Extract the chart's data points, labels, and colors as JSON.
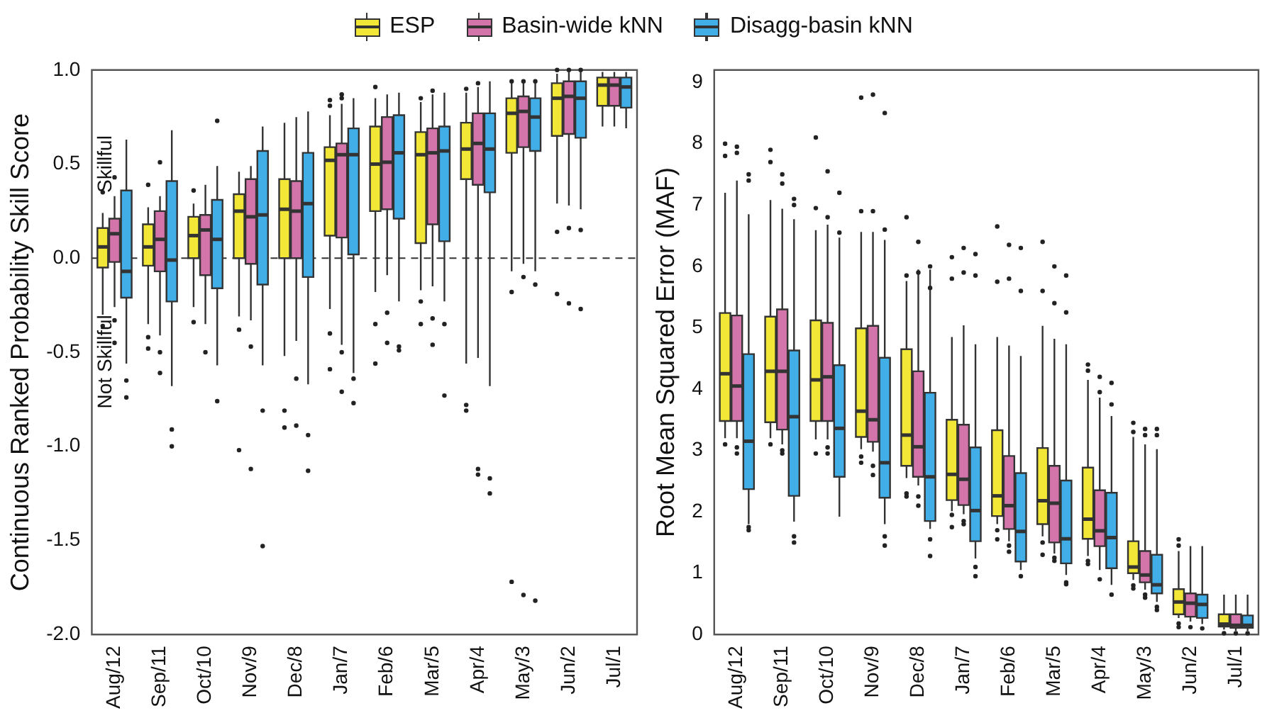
{
  "chart_data": [
    {
      "type": "box",
      "ylabel": "Continuous Ranked Probability Skill Score",
      "categories": [
        "Aug/12",
        "Sep/11",
        "Oct/10",
        "Nov/9",
        "Dec/8",
        "Jan/7",
        "Feb/6",
        "Mar/5",
        "Apr/4",
        "May/3",
        "Jun/2",
        "Jul/1"
      ],
      "ylim": [
        -2.0,
        1.0
      ],
      "yticks": [
        {
          "value": -2,
          "label": "-2.0"
        },
        {
          "value": -1.5,
          "label": "-1.5"
        },
        {
          "value": -1,
          "label": "-1.0"
        },
        {
          "value": -0.5,
          "label": "-0.5"
        },
        {
          "value": 0,
          "label": "0.0"
        },
        {
          "value": 0.5,
          "label": "0.5"
        },
        {
          "value": 1,
          "label": "1.0"
        }
      ],
      "grid": false,
      "legend": "top",
      "ref_lines": [
        {
          "axis": "y",
          "value": 0,
          "line_style": "dashed",
          "color": "#333333"
        }
      ],
      "annotations": [
        "Skillful",
        "Not Skillful"
      ],
      "series": [
        {
          "name": "ESP",
          "color": "#f2e636",
          "boxes": [
            {
              "low": -0.3,
              "q1": -0.05,
              "median": 0.06,
              "q3": 0.16,
              "high": 0.24,
              "outliers": [
                0.35,
                -0.36
              ]
            },
            {
              "low": -0.35,
              "q1": -0.04,
              "median": 0.06,
              "q3": 0.18,
              "high": 0.27,
              "outliers": [
                0.39,
                -0.42,
                -0.48
              ]
            },
            {
              "low": -0.26,
              "q1": 0.0,
              "median": 0.12,
              "q3": 0.22,
              "high": 0.29,
              "outliers": [
                0.36,
                -0.34
              ]
            },
            {
              "low": -0.31,
              "q1": 0.0,
              "median": 0.25,
              "q3": 0.34,
              "high": 0.46,
              "outliers": [
                -0.38,
                -1.02
              ]
            },
            {
              "low": -0.52,
              "q1": 0.0,
              "median": 0.26,
              "q3": 0.42,
              "high": 0.72,
              "outliers": [
                -0.81,
                -0.9
              ]
            },
            {
              "low": -0.27,
              "q1": 0.12,
              "median": 0.52,
              "q3": 0.59,
              "high": 0.76,
              "outliers": [
                0.81,
                0.84,
                -0.4,
                -0.59
              ]
            },
            {
              "low": -0.18,
              "q1": 0.25,
              "median": 0.5,
              "q3": 0.7,
              "high": 0.85,
              "outliers": [
                0.91,
                -0.35,
                -0.56
              ]
            },
            {
              "low": -0.17,
              "q1": 0.08,
              "median": 0.55,
              "q3": 0.67,
              "high": 0.83,
              "outliers": [
                0.85,
                -0.23,
                -0.35
              ]
            },
            {
              "low": -0.56,
              "q1": 0.42,
              "median": 0.58,
              "q3": 0.72,
              "high": 0.88,
              "outliers": [
                0.9,
                -0.78,
                -0.81
              ]
            },
            {
              "low": -0.07,
              "q1": 0.56,
              "median": 0.77,
              "q3": 0.85,
              "high": 0.93,
              "outliers": [
                0.94,
                -0.18,
                -1.72
              ]
            },
            {
              "low": 0.29,
              "q1": 0.65,
              "median": 0.85,
              "q3": 0.93,
              "high": 0.98,
              "outliers": [
                1.0,
                0.14,
                -0.19
              ]
            },
            {
              "low": 0.7,
              "q1": 0.81,
              "median": 0.92,
              "q3": 0.96,
              "high": 0.99
            }
          ]
        },
        {
          "name": "Basin-wide kNN",
          "color": "#d374ab",
          "boxes": [
            {
              "low": -0.26,
              "q1": -0.02,
              "median": 0.13,
              "q3": 0.21,
              "high": 0.33,
              "outliers": [
                0.43,
                -0.33,
                -0.45
              ]
            },
            {
              "low": -0.41,
              "q1": -0.07,
              "median": 0.1,
              "q3": 0.25,
              "high": 0.33,
              "outliers": [
                0.51,
                -0.5,
                -0.61
              ]
            },
            {
              "low": -0.35,
              "q1": -0.09,
              "median": 0.15,
              "q3": 0.23,
              "high": 0.39,
              "outliers": [
                -0.5
              ]
            },
            {
              "low": -0.33,
              "q1": -0.03,
              "median": 0.22,
              "q3": 0.42,
              "high": 0.49,
              "outliers": [
                -0.47,
                -1.12
              ]
            },
            {
              "low": -0.44,
              "q1": 0.0,
              "median": 0.25,
              "q3": 0.41,
              "high": 0.75,
              "outliers": [
                -0.64,
                -0.89
              ]
            },
            {
              "low": -0.46,
              "q1": 0.11,
              "median": 0.55,
              "q3": 0.61,
              "high": 0.82,
              "outliers": [
                0.85,
                0.87,
                -0.5,
                -0.71
              ]
            },
            {
              "low": -0.09,
              "q1": 0.26,
              "median": 0.51,
              "q3": 0.75,
              "high": 0.87,
              "outliers": [
                -0.29,
                -0.45
              ]
            },
            {
              "low": -0.15,
              "q1": 0.18,
              "median": 0.56,
              "q3": 0.69,
              "high": 0.87,
              "outliers": [
                0.89,
                -0.32,
                -0.46
              ]
            },
            {
              "low": -0.53,
              "q1": 0.39,
              "median": 0.61,
              "q3": 0.77,
              "high": 0.91,
              "outliers": [
                0.93,
                -1.12,
                -1.15
              ]
            },
            {
              "low": -0.03,
              "q1": 0.59,
              "median": 0.78,
              "q3": 0.86,
              "high": 0.93,
              "outliers": [
                0.94,
                -0.1,
                -1.79
              ]
            },
            {
              "low": 0.28,
              "q1": 0.66,
              "median": 0.86,
              "q3": 0.94,
              "high": 0.99,
              "outliers": [
                1.0,
                0.16,
                -0.24
              ]
            },
            {
              "low": 0.7,
              "q1": 0.81,
              "median": 0.92,
              "q3": 0.96,
              "high": 0.99
            }
          ]
        },
        {
          "name": "Disagg-basin kNN",
          "color": "#42aee8",
          "boxes": [
            {
              "low": -0.56,
              "q1": -0.21,
              "median": -0.07,
              "q3": 0.36,
              "high": 0.63,
              "outliers": [
                -0.65,
                -0.74
              ]
            },
            {
              "low": -0.68,
              "q1": -0.23,
              "median": -0.01,
              "q3": 0.41,
              "high": 0.68,
              "outliers": [
                -0.91,
                -1.0
              ]
            },
            {
              "low": -0.57,
              "q1": -0.16,
              "median": 0.1,
              "q3": 0.31,
              "high": 0.49,
              "outliers": [
                0.73,
                -0.76
              ]
            },
            {
              "low": -0.57,
              "q1": -0.14,
              "median": 0.23,
              "q3": 0.57,
              "high": 0.7,
              "outliers": [
                -0.81,
                -1.53
              ]
            },
            {
              "low": -0.67,
              "q1": -0.1,
              "median": 0.29,
              "q3": 0.56,
              "high": 0.78,
              "outliers": [
                -0.94,
                -1.13
              ]
            },
            {
              "low": -0.61,
              "q1": 0.02,
              "median": 0.55,
              "q3": 0.69,
              "high": 0.85,
              "outliers": [
                -0.64,
                -0.77
              ]
            },
            {
              "low": -0.23,
              "q1": 0.21,
              "median": 0.56,
              "q3": 0.76,
              "high": 0.88,
              "outliers": [
                -0.47,
                -0.49
              ]
            },
            {
              "low": -0.23,
              "q1": 0.09,
              "median": 0.57,
              "q3": 0.7,
              "high": 0.88,
              "outliers": [
                -0.35,
                -0.73
              ]
            },
            {
              "low": -0.68,
              "q1": 0.35,
              "median": 0.58,
              "q3": 0.77,
              "high": 0.94,
              "outliers": [
                -1.17,
                -1.25
              ]
            },
            {
              "low": -0.07,
              "q1": 0.57,
              "median": 0.75,
              "q3": 0.85,
              "high": 0.93,
              "outliers": [
                0.94,
                -0.14,
                -1.82
              ]
            },
            {
              "low": 0.26,
              "q1": 0.64,
              "median": 0.85,
              "q3": 0.94,
              "high": 0.99,
              "outliers": [
                1.0,
                0.15,
                -0.27
              ]
            },
            {
              "low": 0.69,
              "q1": 0.8,
              "median": 0.91,
              "q3": 0.96,
              "high": 0.99
            }
          ]
        }
      ]
    },
    {
      "type": "box",
      "ylabel": "Root Mean Squared Error (MAF)",
      "categories": [
        "Aug/12",
        "Sep/11",
        "Oct/10",
        "Nov/9",
        "Dec/8",
        "Jan/7",
        "Feb/6",
        "Mar/5",
        "Apr/4",
        "May/3",
        "Jun/2",
        "Jul/1"
      ],
      "ylim": [
        0,
        9.2
      ],
      "yticks": [
        0,
        1,
        2,
        3,
        4,
        5,
        6,
        7,
        8,
        9
      ],
      "grid": false,
      "series": [
        {
          "color": "#f2e636",
          "boxes": [
            {
              "low": 3.2,
              "q1": 3.48,
              "median": 4.25,
              "q3": 5.24,
              "high": 7.2,
              "outliers": [
                8.0,
                7.8,
                3.1
              ]
            },
            {
              "low": 3.2,
              "q1": 3.46,
              "median": 4.29,
              "q3": 5.18,
              "high": 7.08,
              "outliers": [
                7.9,
                7.7,
                3.1
              ]
            },
            {
              "low": 3.18,
              "q1": 3.48,
              "median": 4.15,
              "q3": 5.12,
              "high": 6.59,
              "outliers": [
                8.1,
                6.95,
                2.95
              ]
            },
            {
              "low": 3.02,
              "q1": 3.22,
              "median": 3.64,
              "q3": 4.99,
              "high": 6.56,
              "outliers": [
                8.75,
                6.9,
                2.9,
                2.8
              ]
            },
            {
              "low": 2.55,
              "q1": 2.75,
              "median": 3.25,
              "q3": 4.65,
              "high": 5.76,
              "outliers": [
                6.8,
                5.85,
                2.3,
                2.25
              ]
            },
            {
              "low": 2.01,
              "q1": 2.19,
              "median": 2.61,
              "q3": 3.5,
              "high": 4.85,
              "outliers": [
                6.15,
                5.8,
                1.95,
                1.75
              ]
            },
            {
              "low": 1.8,
              "q1": 1.93,
              "median": 2.26,
              "q3": 3.33,
              "high": 4.85,
              "outliers": [
                6.65,
                5.75,
                1.7,
                1.55
              ]
            },
            {
              "low": 1.6,
              "q1": 1.8,
              "median": 2.18,
              "q3": 3.04,
              "high": 5.03,
              "outliers": [
                6.4,
                5.6,
                1.5,
                1.3
              ]
            },
            {
              "low": 1.28,
              "q1": 1.56,
              "median": 1.88,
              "q3": 2.72,
              "high": 4.15,
              "outliers": [
                4.4,
                4.3,
                1.2,
                1.15
              ]
            },
            {
              "low": 0.89,
              "q1": 1.0,
              "median": 1.1,
              "q3": 1.52,
              "high": 3.22,
              "outliers": [
                3.45,
                3.3,
                0.8,
                0.75
              ]
            },
            {
              "low": 0.27,
              "q1": 0.33,
              "median": 0.53,
              "q3": 0.74,
              "high": 1.36,
              "outliers": [
                1.55,
                1.45,
                0.18,
                0.12
              ]
            },
            {
              "low": 0.08,
              "q1": 0.13,
              "median": 0.17,
              "q3": 0.33,
              "high": 0.65,
              "outliers": [
                0.02
              ]
            }
          ]
        },
        {
          "color": "#d374ab",
          "boxes": [
            {
              "low": 3.2,
              "q1": 3.48,
              "median": 4.05,
              "q3": 5.2,
              "high": 7.4,
              "outliers": [
                7.95,
                7.85,
                3.05,
                2.95
              ]
            },
            {
              "low": 3.1,
              "q1": 3.34,
              "median": 4.29,
              "q3": 5.3,
              "high": 6.94,
              "outliers": [
                7.5,
                7.35,
                3.0,
                2.95
              ]
            },
            {
              "low": 3.18,
              "q1": 3.48,
              "median": 4.2,
              "q3": 5.08,
              "high": 6.68,
              "outliers": [
                7.55,
                6.8,
                3.05,
                2.95
              ]
            },
            {
              "low": 2.98,
              "q1": 3.14,
              "median": 3.5,
              "q3": 5.03,
              "high": 6.56,
              "outliers": [
                8.8,
                6.9,
                2.75,
                2.6
              ]
            },
            {
              "low": 2.43,
              "q1": 2.57,
              "median": 3.06,
              "q3": 4.29,
              "high": 5.95,
              "outliers": [
                6.4,
                5.9,
                2.25,
                2.1
              ]
            },
            {
              "low": 1.96,
              "q1": 2.11,
              "median": 2.53,
              "q3": 3.42,
              "high": 5.04,
              "outliers": [
                6.3,
                5.9,
                1.85,
                1.8
              ]
            },
            {
              "low": 1.52,
              "q1": 1.72,
              "median": 2.1,
              "q3": 2.91,
              "high": 4.71,
              "outliers": [
                6.35,
                5.8,
                1.45,
                1.35
              ]
            },
            {
              "low": 1.32,
              "q1": 1.5,
              "median": 2.14,
              "q3": 2.75,
              "high": 4.82,
              "outliers": [
                6.0,
                5.4,
                1.25,
                1.2
              ]
            },
            {
              "low": 1.05,
              "q1": 1.44,
              "median": 1.69,
              "q3": 2.35,
              "high": 3.86,
              "outliers": [
                4.2,
                3.95,
                0.9
              ]
            },
            {
              "low": 0.73,
              "q1": 0.85,
              "median": 0.97,
              "q3": 1.36,
              "high": 3.1,
              "outliers": [
                3.35,
                3.25,
                0.65,
                0.6
              ]
            },
            {
              "low": 0.21,
              "q1": 0.29,
              "median": 0.51,
              "q3": 0.67,
              "high": 1.44,
              "outliers": [
                0.12
              ]
            },
            {
              "low": 0.06,
              "q1": 0.11,
              "median": 0.15,
              "q3": 0.33,
              "high": 0.65,
              "outliers": [
                0.02
              ]
            }
          ]
        },
        {
          "color": "#42aee8",
          "boxes": [
            {
              "low": 1.8,
              "q1": 2.37,
              "median": 3.15,
              "q3": 4.57,
              "high": 6.85,
              "outliers": [
                7.5,
                7.4,
                1.75,
                1.7
              ]
            },
            {
              "low": 1.84,
              "q1": 2.26,
              "median": 3.55,
              "q3": 4.63,
              "high": 6.77,
              "outliers": [
                7.1,
                7.0,
                1.6,
                1.5
              ]
            },
            {
              "low": 1.92,
              "q1": 2.57,
              "median": 3.36,
              "q3": 4.39,
              "high": 6.47,
              "outliers": [
                7.2,
                6.55
              ]
            },
            {
              "low": 1.8,
              "q1": 2.23,
              "median": 2.8,
              "q3": 4.51,
              "high": 6.43,
              "outliers": [
                8.5,
                6.6,
                1.6,
                1.45
              ]
            },
            {
              "low": 1.72,
              "q1": 1.85,
              "median": 2.57,
              "q3": 3.94,
              "high": 5.95,
              "outliers": [
                6.0,
                5.65,
                1.55,
                1.28
              ]
            },
            {
              "low": 1.24,
              "q1": 1.52,
              "median": 2.02,
              "q3": 3.05,
              "high": 4.73,
              "outliers": [
                6.2,
                5.85,
                1.1,
                0.95
              ]
            },
            {
              "low": 1.05,
              "q1": 1.19,
              "median": 1.68,
              "q3": 2.63,
              "high": 4.54,
              "outliers": [
                6.3,
                5.6,
                0.95
              ]
            },
            {
              "low": 0.97,
              "q1": 1.16,
              "median": 1.56,
              "q3": 2.51,
              "high": 4.73,
              "outliers": [
                5.85,
                5.25,
                0.85,
                0.82
              ]
            },
            {
              "low": 0.81,
              "q1": 1.08,
              "median": 1.58,
              "q3": 2.31,
              "high": 3.56,
              "outliers": [
                4.1,
                3.75,
                0.65
              ]
            },
            {
              "low": 0.53,
              "q1": 0.67,
              "median": 0.81,
              "q3": 1.3,
              "high": 3.02,
              "outliers": [
                3.35,
                3.25,
                0.45,
                0.4
              ]
            },
            {
              "low": 0.17,
              "q1": 0.27,
              "median": 0.49,
              "q3": 0.65,
              "high": 1.44,
              "outliers": [
                0.1
              ]
            },
            {
              "low": 0.06,
              "q1": 0.11,
              "median": 0.15,
              "q3": 0.31,
              "high": 0.65,
              "outliers": [
                0.02
              ]
            }
          ]
        }
      ]
    }
  ]
}
